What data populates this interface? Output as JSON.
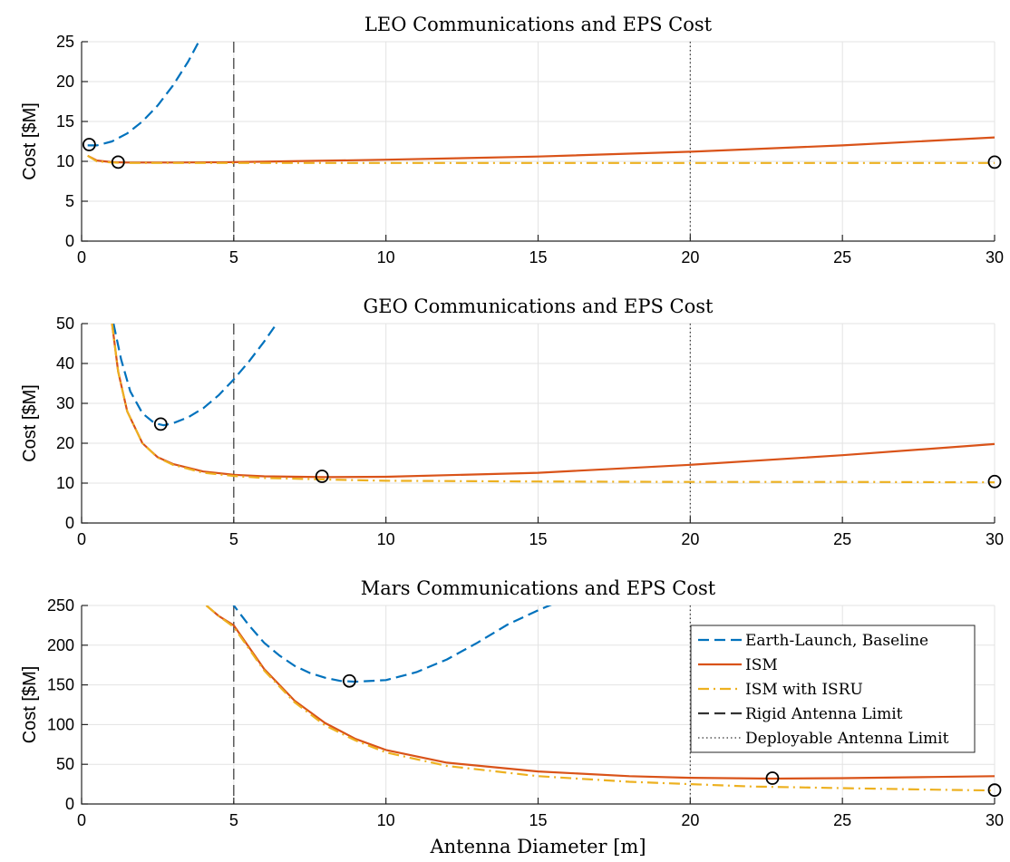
{
  "colors": {
    "earth_launch": "#0072BD",
    "ism": "#D95319",
    "ism_isru": "#EDB120",
    "limit": "#333333",
    "marker": "#000000"
  },
  "xlabel": "Antenna Diameter [m]",
  "legend": {
    "entries": [
      {
        "label": "Earth-Launch, Baseline",
        "style": "dashed",
        "color": "#0072BD"
      },
      {
        "label": "ISM",
        "style": "solid",
        "color": "#D95319"
      },
      {
        "label": "ISM with ISRU",
        "style": "dashdot",
        "color": "#EDB120"
      },
      {
        "label": "Rigid Antenna Limit",
        "style": "dashed",
        "color": "#333333"
      },
      {
        "label": "Deployable Antenna Limit",
        "style": "dotted",
        "color": "#333333"
      }
    ]
  },
  "chart_data": [
    {
      "type": "line",
      "title": "LEO Communications and EPS Cost",
      "xlabel": "",
      "ylabel": "Cost [$M]",
      "xlim": [
        0,
        30
      ],
      "ylim": [
        0,
        25
      ],
      "xticks": [
        0,
        5,
        10,
        15,
        20,
        25,
        30
      ],
      "yticks": [
        0,
        5,
        10,
        15,
        20,
        25
      ],
      "grid": true,
      "vlines": [
        {
          "x": 5,
          "style": "dashed"
        },
        {
          "x": 20,
          "style": "dotted"
        }
      ],
      "series": [
        {
          "name": "Earth-Launch, Baseline",
          "style": "dashed",
          "color": "#0072BD",
          "x": [
            0.2,
            0.5,
            1.0,
            1.5,
            2.0,
            2.5,
            3.0,
            3.5,
            3.85
          ],
          "y": [
            12.0,
            12.0,
            12.5,
            13.5,
            15.0,
            17.0,
            19.5,
            22.5,
            25.0
          ]
        },
        {
          "name": "ISM",
          "style": "solid",
          "color": "#D95319",
          "x": [
            0.2,
            0.5,
            1.0,
            1.5,
            2,
            3,
            5,
            10,
            15,
            20,
            25,
            30
          ],
          "y": [
            10.7,
            10.1,
            9.9,
            9.85,
            9.85,
            9.85,
            9.9,
            10.2,
            10.6,
            11.2,
            12.0,
            13.0
          ]
        },
        {
          "name": "ISM with ISRU",
          "style": "dashdot",
          "color": "#EDB120",
          "x": [
            0.2,
            0.5,
            1.0,
            1.5,
            2,
            5,
            10,
            15,
            20,
            25,
            30
          ],
          "y": [
            10.7,
            10.0,
            9.85,
            9.8,
            9.8,
            9.8,
            9.8,
            9.8,
            9.8,
            9.8,
            9.8
          ]
        }
      ],
      "minima": [
        {
          "x": 0.25,
          "y": 12.1
        },
        {
          "x": 1.2,
          "y": 9.9
        },
        {
          "x": 30,
          "y": 9.9
        }
      ]
    },
    {
      "type": "line",
      "title": "GEO Communications and EPS Cost",
      "xlabel": "",
      "ylabel": "Cost [$M]",
      "xlim": [
        0,
        30
      ],
      "ylim": [
        0,
        50
      ],
      "xticks": [
        0,
        5,
        10,
        15,
        20,
        25,
        30
      ],
      "yticks": [
        0,
        10,
        20,
        30,
        40,
        50
      ],
      "grid": true,
      "vlines": [
        {
          "x": 5,
          "style": "dashed"
        },
        {
          "x": 20,
          "style": "dotted"
        }
      ],
      "series": [
        {
          "name": "Earth-Launch, Baseline",
          "style": "dashed",
          "color": "#0072BD",
          "x": [
            1.05,
            1.3,
            1.6,
            2.0,
            2.4,
            2.7,
            3.0,
            3.5,
            4.0,
            4.5,
            5.0,
            5.5,
            6.0,
            6.5
          ],
          "y": [
            50,
            41,
            33,
            27.5,
            25,
            24.5,
            25,
            26.5,
            28.8,
            32,
            36,
            40.5,
            45.5,
            51
          ]
        },
        {
          "name": "ISM",
          "style": "solid",
          "color": "#D95319",
          "x": [
            1.0,
            1.2,
            1.5,
            2.0,
            2.5,
            3,
            4,
            5,
            6,
            8,
            10,
            15,
            20,
            25,
            30
          ],
          "y": [
            50,
            38,
            28,
            20,
            16.5,
            14.8,
            12.9,
            12.1,
            11.7,
            11.5,
            11.6,
            12.6,
            14.6,
            17.0,
            19.8
          ]
        },
        {
          "name": "ISM with ISRU",
          "style": "dashdot",
          "color": "#EDB120",
          "x": [
            1.0,
            1.2,
            1.5,
            2.0,
            2.5,
            3,
            4,
            5,
            6,
            8,
            10,
            15,
            20,
            25,
            30
          ],
          "y": [
            50,
            38,
            28,
            20,
            16.4,
            14.6,
            12.6,
            11.8,
            11.3,
            10.9,
            10.6,
            10.4,
            10.3,
            10.3,
            10.2
          ]
        }
      ],
      "minima": [
        {
          "x": 2.6,
          "y": 24.8
        },
        {
          "x": 7.9,
          "y": 11.7
        },
        {
          "x": 30,
          "y": 10.4
        }
      ]
    },
    {
      "type": "line",
      "title": "Mars Communications and EPS Cost",
      "xlabel": "Antenna Diameter [m]",
      "ylabel": "Cost [$M]",
      "xlim": [
        0,
        30
      ],
      "ylim": [
        0,
        250
      ],
      "xticks": [
        0,
        5,
        10,
        15,
        20,
        25,
        30
      ],
      "yticks": [
        0,
        50,
        100,
        150,
        200,
        250
      ],
      "grid": true,
      "legend_position": "top-right",
      "vlines": [
        {
          "x": 5,
          "style": "dashed"
        },
        {
          "x": 20,
          "style": "dotted"
        }
      ],
      "series": [
        {
          "name": "Earth-Launch, Baseline",
          "style": "dashed",
          "color": "#0072BD",
          "x": [
            4.9,
            5.5,
            6,
            6.5,
            7,
            7.5,
            8,
            8.5,
            9,
            10,
            11,
            12,
            13,
            14,
            15,
            15.5
          ],
          "y": [
            255,
            225,
            203,
            187,
            174,
            165,
            159,
            155,
            154,
            156,
            166,
            182,
            203,
            226,
            244,
            252
          ]
        },
        {
          "name": "ISM",
          "style": "solid",
          "color": "#D95319",
          "x": [
            4.1,
            4.5,
            5,
            6,
            7,
            8,
            9,
            10,
            12,
            15,
            18,
            20,
            22.7,
            25,
            28,
            30
          ],
          "y": [
            250,
            237,
            225,
            170,
            130,
            102,
            82,
            68,
            52,
            41,
            35,
            33,
            32,
            32.5,
            34,
            35
          ]
        },
        {
          "name": "ISM with ISRU",
          "style": "dashdot",
          "color": "#EDB120",
          "x": [
            4.1,
            4.5,
            5,
            6,
            7,
            8,
            9,
            10,
            12,
            15,
            18,
            20,
            22,
            25,
            28,
            30
          ],
          "y": [
            250,
            237,
            223,
            168,
            128,
            99,
            80,
            65,
            48,
            35,
            28,
            25,
            22,
            20,
            18,
            17
          ]
        }
      ],
      "minima": [
        {
          "x": 8.8,
          "y": 155
        },
        {
          "x": 22.7,
          "y": 32.5
        },
        {
          "x": 30,
          "y": 17.5
        }
      ]
    }
  ]
}
